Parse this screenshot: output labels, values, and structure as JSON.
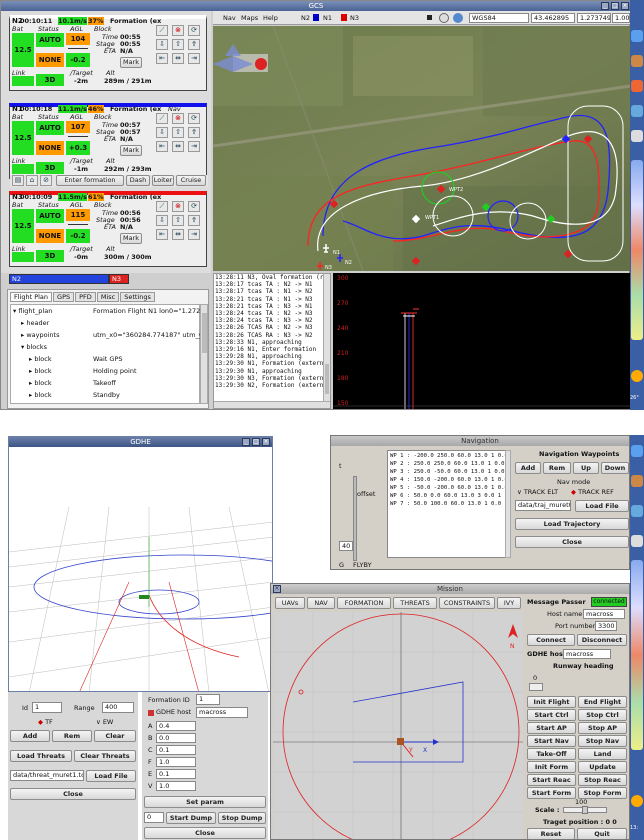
{
  "gcs": {
    "title": "GCS",
    "menu": [
      "Nav",
      "Maps",
      "Help"
    ],
    "aircraft_legend": [
      {
        "name": "N2",
        "color": "#0000cc"
      },
      {
        "name": "N1",
        "color": "#0000cc"
      },
      {
        "name": "N3",
        "color": "#dd0000"
      }
    ],
    "projection": "WGS84",
    "lat": "43.462895",
    "lon": "1.273749",
    "zoom": "1.00",
    "aircraft": [
      {
        "name": "N2",
        "time": "00:10:11",
        "volts": "10.1m/s",
        "pct": "37%",
        "block": "Formation (ex",
        "bat_label": "Bat",
        "status_label": "Status",
        "agl_label": "AGL",
        "block_label": "Block",
        "bat": "12.5",
        "mode": "AUTO",
        "agl": "104",
        "gps": "NONE",
        "climb": "-0.2",
        "block_time": "00:55",
        "stage_time": "00:55",
        "eta": "N/A",
        "link_label": "Link",
        "fix": "3D",
        "target_label": "/Target",
        "alt_label": "Alt",
        "target": "-2m",
        "alt": "289m / 291m",
        "header_color": "#ffffff"
      },
      {
        "name": "N1",
        "time": "00:10:18",
        "volts": "11.1m/s",
        "pct": "46%",
        "block": "Formation (ex",
        "nav": "Nav",
        "bat_label": "Bat",
        "status_label": "Status",
        "agl_label": "AGL",
        "block_label": "Block",
        "bat": "12.5",
        "mode": "AUTO",
        "agl": "107",
        "gps": "NONE",
        "climb": "+0.3",
        "block_time": "00:57",
        "stage_time": "00:57",
        "eta": "N/A",
        "link_label": "Link",
        "fix": "3D",
        "target_label": "/Target",
        "alt_label": "Alt",
        "target": "-1m",
        "alt": "292m / 293m",
        "header_color": "#1111ee"
      },
      {
        "name": "N3",
        "time": "00:10:09",
        "volts": "11.5m/s",
        "pct": "61%",
        "block": "Formation (ex",
        "bat_label": "Bat",
        "status_label": "Status",
        "agl_label": "AGL",
        "block_label": "Block",
        "bat": "12.5",
        "mode": "AUTO",
        "agl": "115",
        "gps": "NONE",
        "climb": "-0.2",
        "block_time": "00:56",
        "stage_time": "00:56",
        "eta": "N/A",
        "link_label": "Link",
        "fix": "3D",
        "target_label": "/Target",
        "alt_label": "Alt",
        "target": "-0m",
        "alt": "300m / 300m",
        "header_color": "#ee1111"
      }
    ],
    "labels": {
      "time": "Time",
      "stage": "Stage",
      "eta": "ETA",
      "mark": "Mark"
    },
    "formation_buttons": [
      "Enter formation",
      "Dash",
      "Loiter",
      "Cruise"
    ],
    "strip_tabs": [
      "N2",
      "N3"
    ],
    "tabs": [
      "Flight Plan",
      "GPS",
      "PFD",
      "Misc",
      "Settings"
    ],
    "tree": [
      {
        "indent": 0,
        "label": "flight_plan",
        "value": "Formation Flight N1 lon0=\"1.27289\" n",
        "open": true
      },
      {
        "indent": 1,
        "label": "header",
        "value": "",
        "open": false
      },
      {
        "indent": 1,
        "label": "waypoints",
        "value": "utm_x0=\"360284.774187\" utm_y0=\"4",
        "open": false
      },
      {
        "indent": 1,
        "label": "blocks",
        "value": "",
        "open": true
      },
      {
        "indent": 2,
        "label": "block",
        "value": "Wait GPS",
        "open": false
      },
      {
        "indent": 2,
        "label": "block",
        "value": "Holding point",
        "open": false
      },
      {
        "indent": 2,
        "label": "block",
        "value": "Takeoff",
        "open": false
      },
      {
        "indent": 2,
        "label": "block",
        "value": "Standby",
        "open": false
      }
    ],
    "log": [
      "13:28:11 N3, Oval formation (rollt",
      "13:28:17 tcas TA : N2 -> N1",
      "13:28:17 tcas TA : N1 -> N2",
      "13:28:21 tcas TA : N1 -> N3",
      "13:28:21 tcas TA : N3 -> N1",
      "13:28:24 tcas TA : N2 -> N3",
      "13:28:24 tcas TA : N3 -> N2",
      "13:28:26 TCAS RA : N2 -> N3",
      "13:28:26 TCAS RA : N3 -> N2",
      "13:28:33 N1, approaching",
      "13:29:16 N1, Enter formation",
      "13:29:28 N1, approaching",
      "13:29:30 N1, Formation (externa",
      "13:29:30 N1, approaching",
      "13:29:30 N3, Formation (externa",
      "13:29:30 N2, Formation (externa"
    ],
    "alt_ticks": [
      "300",
      "270",
      "240",
      "210",
      "180",
      "150"
    ],
    "map_waypoints": [
      "WPT1",
      "WPT2",
      "N1",
      "N2",
      "N3"
    ]
  },
  "gdhe": {
    "title": "GDHE",
    "threat": {
      "id_label": "Id",
      "id": "1",
      "range_label": "Range",
      "range": "400",
      "tf": "TF",
      "ew": "EW",
      "add": "Add",
      "rem": "Rem",
      "clear": "Clear",
      "load_threats": "Load Threats",
      "clear_threats": "Clear Threats",
      "file": "data/threat_muret1.tcl",
      "load_file": "Load File",
      "close": "Close"
    },
    "formation": {
      "id_label": "Formation ID",
      "id": "1",
      "host_label": "GDHE host",
      "host": "macross",
      "params": [
        {
          "k": "A",
          "v": "0.4"
        },
        {
          "k": "B",
          "v": "0.0"
        },
        {
          "k": "C",
          "v": "0.1"
        },
        {
          "k": "F",
          "v": "1.0"
        },
        {
          "k": "E",
          "v": "0.1"
        },
        {
          "k": "V",
          "v": "1.0"
        }
      ],
      "set_param": "Set param",
      "dump_value": "0",
      "start_dump": "Start Dump",
      "stop_dump": "Stop Dump",
      "close": "Close"
    }
  },
  "navigation": {
    "title": "Navigation",
    "offset": "offset",
    "t": "t",
    "spin": "40",
    "flyby": "FLYBY",
    "g": "G",
    "waypoints": [
      "WP 1 : -200.0 250.0  60.0  13.0 1 0.0",
      "WP 2 : 250.0 250.0  60.0  13.0 1 0.0",
      "WP 3 : 250.0 -50.0  60.0  13.0 1 0.0",
      "WP 4 : 150.0 -200.0 60.0  13.0 1 0.0",
      "WP 5 : -50.0 -200.0 60.0  13.0 1 0.0",
      "WP 6 : 50.0 0.0  60.0  13.0 3 0.0 1",
      "WP 7 : 50.0 100.0  60.0  13.0 1 0.0"
    ],
    "panel_title": "Navigation Waypoints",
    "add": "Add",
    "rem": "Rem",
    "up": "Up",
    "down": "Down",
    "nav_mode": "Nav mode",
    "track_elt": "TRACK ELT",
    "track_ref": "TRACK REF",
    "file": "data/traj_muret0.tcl",
    "load_file": "Load File",
    "load_traj": "Load Trajectory",
    "close": "Close"
  },
  "mission": {
    "title": "Mission",
    "tabs": [
      "UAVs",
      "NAV",
      "FORMATION",
      "THREATS",
      "CONSTRAINTS",
      "IVY"
    ],
    "north": "N",
    "axis_x": "X",
    "axis_y": "Y",
    "mp_label": "Message Passer",
    "mp_status": "connected",
    "host_label": "Host name",
    "host": "macross",
    "port_label": "Port number",
    "port": "3300",
    "connect": "Connect",
    "disconnect": "Disconnect",
    "gdhe_label": "GDHE host",
    "gdhe_host": "macross",
    "heading_label": "Runway heading",
    "heading": "0",
    "buttons": [
      [
        "Init Flight",
        "End Flight"
      ],
      [
        "Start Ctrl",
        "Stop Ctrl"
      ],
      [
        "Start AP",
        "Stop AP"
      ],
      [
        "Start Nav",
        "Stop Nav"
      ],
      [
        "Take-Off",
        "Land"
      ],
      [
        "Init Form",
        "Update Form"
      ],
      [
        "Start Reac",
        "Stop Reac"
      ],
      [
        "Start Form",
        "Stop Form"
      ]
    ],
    "scale_label": "Scale :",
    "scale": "100",
    "target_pos": "Traget position : 0 0",
    "reset": "Reset",
    "quit": "Quit"
  },
  "dock": {
    "temp": "26°",
    "clock": "13:"
  }
}
